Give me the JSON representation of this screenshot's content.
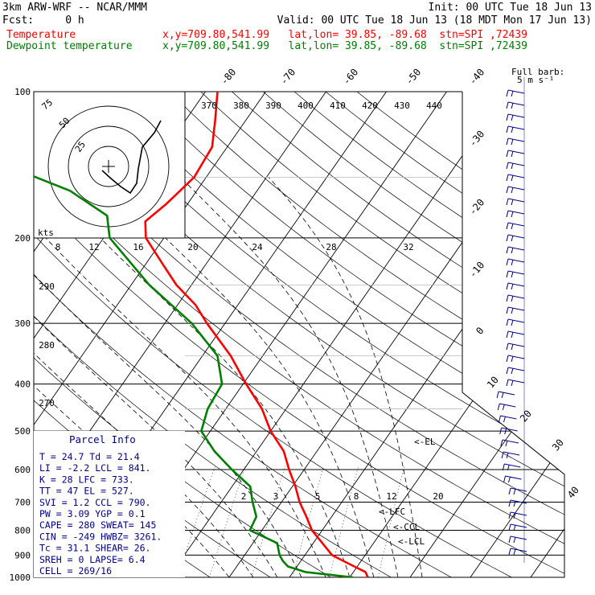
{
  "header": {
    "model": "3km ARW-WRF -- NCAR/MMM",
    "init": "Init: 00 UTC Tue 18 Jun 13",
    "fcst": "Fcst:     0 h",
    "valid": "Valid: 00 UTC Tue 18 Jun 13 (18 MDT Mon 17 Jun 13)",
    "temp_label": "Temperature",
    "temp_loc": "x,y=709.80,541.99   lat,lon= 39.85, -89.68  stn=SPI ,72439",
    "dew_label": "Dewpoint temperature",
    "dew_loc": "x,y=709.80,541.99   lat,lon= 39.85, -89.68  stn=SPI ,72439"
  },
  "colors": {
    "temperature": "#ff0000",
    "dewpoint": "#008000",
    "hodograph": "#000000",
    "info": "#00008b",
    "wind": "#00008b"
  },
  "wind_key": {
    "line1": "Full barb:",
    "line2": "5 m s⁻¹"
  },
  "chart_data": {
    "type": "line",
    "chart_kind": "skew-T log-p sounding",
    "y_axis": "pressure (hPa), log scale",
    "ylim": [
      1000,
      100
    ],
    "pressure_ticks": [
      "100",
      "200",
      "300",
      "400",
      "500",
      "600",
      "700",
      "800",
      "900",
      "1000"
    ],
    "isotherm_labels": [
      "-80",
      "-70",
      "-60",
      "-50",
      "-40",
      "-30",
      "-20",
      "-10",
      "0",
      "10",
      "20",
      "30",
      "40"
    ],
    "theta_labels": [
      "370",
      "380",
      "390",
      "400",
      "410",
      "420",
      "430",
      "440"
    ],
    "theta_side_labels": [
      "290",
      "280",
      "270"
    ],
    "mixing_ratio_labels": [
      "2",
      "3",
      "5",
      "8",
      "12",
      "20"
    ],
    "hodograph": {
      "speed_unit": "kts",
      "ring_labels": [
        "25",
        "50",
        "75"
      ]
    },
    "wind_speed_labels": [
      "8",
      "12",
      "16",
      "20",
      "24",
      "28",
      "32"
    ],
    "series": [
      {
        "name": "Temperature",
        "points": [
          [
            1000,
            23.0
          ],
          [
            975,
            22.0
          ],
          [
            950,
            19.5
          ],
          [
            925,
            17.0
          ],
          [
            900,
            14.5
          ],
          [
            850,
            11.5
          ],
          [
            800,
            8.3
          ],
          [
            750,
            5.8
          ],
          [
            700,
            3.0
          ],
          [
            650,
            0.5
          ],
          [
            600,
            -2.5
          ],
          [
            550,
            -5.5
          ],
          [
            500,
            -10.0
          ],
          [
            450,
            -14.0
          ],
          [
            400,
            -19.5
          ],
          [
            350,
            -25.3
          ],
          [
            300,
            -33.0
          ],
          [
            275,
            -37.0
          ],
          [
            250,
            -42.5
          ],
          [
            225,
            -47.5
          ],
          [
            200,
            -53.0
          ],
          [
            185,
            -55.0
          ],
          [
            170,
            -53.5
          ],
          [
            150,
            -52.0
          ],
          [
            130,
            -52.5
          ],
          [
            115,
            -55.0
          ],
          [
            100,
            -58.0
          ]
        ]
      },
      {
        "name": "Dewpoint temperature",
        "points": [
          [
            1000,
            20.5
          ],
          [
            975,
            12.0
          ],
          [
            950,
            8.5
          ],
          [
            925,
            7.0
          ],
          [
            900,
            5.8
          ],
          [
            850,
            4.0
          ],
          [
            800,
            -2.0
          ],
          [
            750,
            -2.5
          ],
          [
            700,
            -4.8
          ],
          [
            650,
            -7.0
          ],
          [
            600,
            -12.0
          ],
          [
            550,
            -17.0
          ],
          [
            500,
            -21.5
          ],
          [
            450,
            -23.0
          ],
          [
            400,
            -23.5
          ],
          [
            350,
            -27.5
          ],
          [
            300,
            -35.5
          ],
          [
            250,
            -47.0
          ],
          [
            200,
            -59.0
          ],
          [
            180,
            -62.0
          ],
          [
            160,
            -71.0
          ],
          [
            140,
            -86.0
          ],
          [
            125,
            -92.0
          ],
          [
            110,
            -90.0
          ],
          [
            103,
            -88.0
          ]
        ]
      }
    ],
    "parcel_markers": [
      "<-EL",
      "<-LFC",
      "<-CCL",
      "<-LCL"
    ]
  },
  "parcel_info": {
    "title": "Parcel Info",
    "lines": [
      "T  =   24.7 Td =  21.4",
      "LI =   -2.2 LCL =  841.",
      "K  =     28 LFC =  733.",
      "TT =     47 EL  =  527.",
      "SVI =   1.2 CCL =  790.",
      "PW =   3.09 YGP =   0.1",
      "CAPE =  280 SWEAT=  145",
      "CIN =  -249 HWBZ= 3261.",
      "Tc =   31.1 SHEAR=  26.",
      "SREH =    0 LAPSE=  6.4",
      "CELL = 269/16"
    ]
  }
}
